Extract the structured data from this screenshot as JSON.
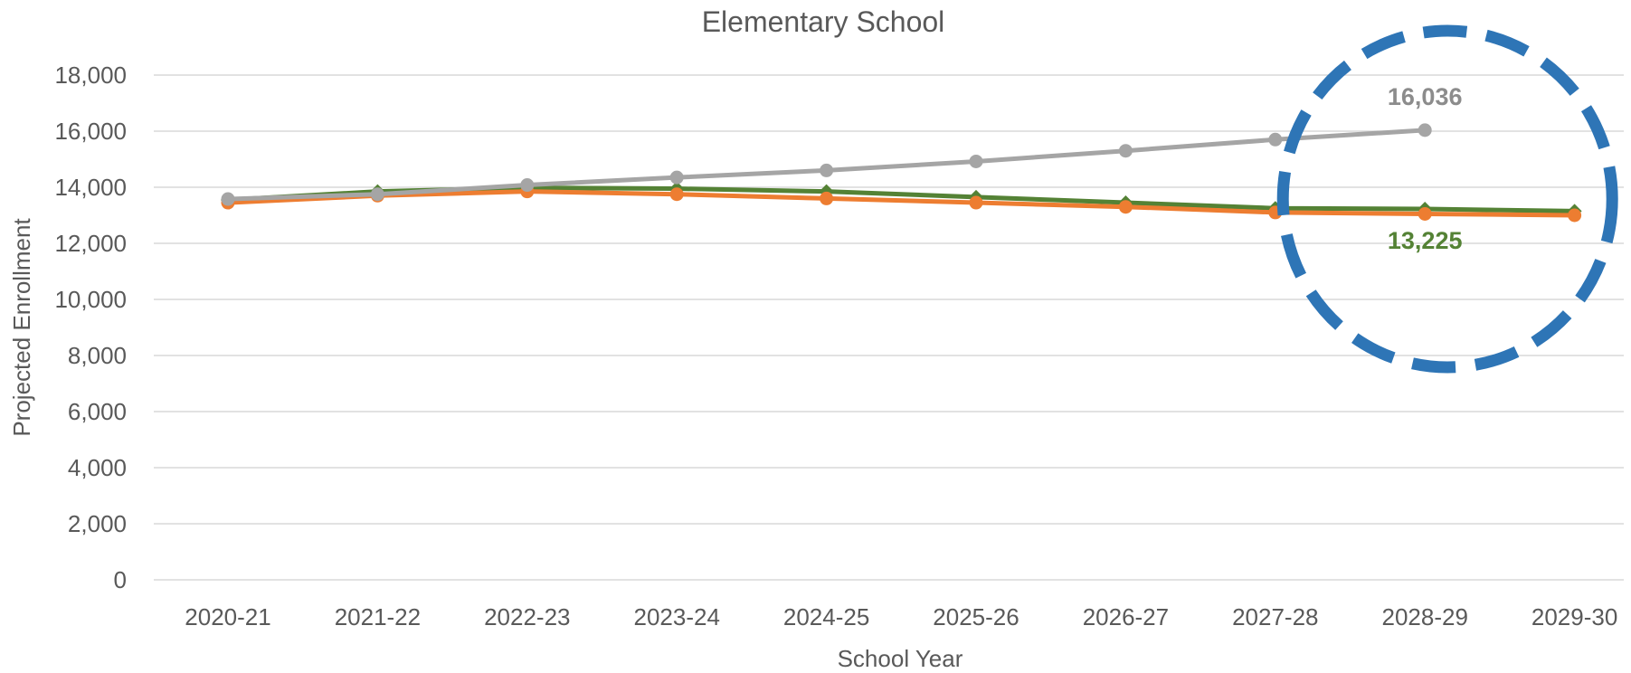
{
  "chart_data": {
    "type": "line",
    "title": "Elementary School",
    "xlabel": "School Year",
    "ylabel": "Projected Enrollment",
    "ylim": [
      0,
      18000
    ],
    "yticks": [
      0,
      2000,
      4000,
      6000,
      8000,
      10000,
      12000,
      14000,
      16000,
      18000
    ],
    "ytick_labels": [
      "0",
      "2,000",
      "4,000",
      "6,000",
      "8,000",
      "10,000",
      "12,000",
      "14,000",
      "16,000",
      "18,000"
    ],
    "grid": true,
    "legend": "none",
    "categories": [
      "2020-21",
      "2021-22",
      "2022-23",
      "2023-24",
      "2024-25",
      "2025-26",
      "2026-27",
      "2027-28",
      "2028-29",
      "2029-30"
    ],
    "series": [
      {
        "color": "#548235",
        "marker": "diamond",
        "values": [
          13550,
          13850,
          13980,
          13950,
          13850,
          13650,
          13450,
          13250,
          13225,
          13150
        ]
      },
      {
        "color": "#ed7d31",
        "marker": "circle",
        "values": [
          13450,
          13700,
          13850,
          13750,
          13600,
          13450,
          13300,
          13100,
          13050,
          13000
        ]
      },
      {
        "color": "#a5a5a5",
        "marker": "circle",
        "values": [
          13580,
          13750,
          14080,
          14350,
          14600,
          14920,
          15300,
          15700,
          16036,
          null
        ]
      }
    ],
    "annotations": [
      {
        "text": "16,036",
        "color": "#8c8c8c",
        "category": "2028-29",
        "value": 16036
      },
      {
        "text": "13,225",
        "color": "#548235",
        "category": "2028-29",
        "value": 13225
      }
    ],
    "highlight": {
      "shape": "dashed-circle",
      "color": "#2e75b6",
      "category": "2028-29"
    }
  }
}
